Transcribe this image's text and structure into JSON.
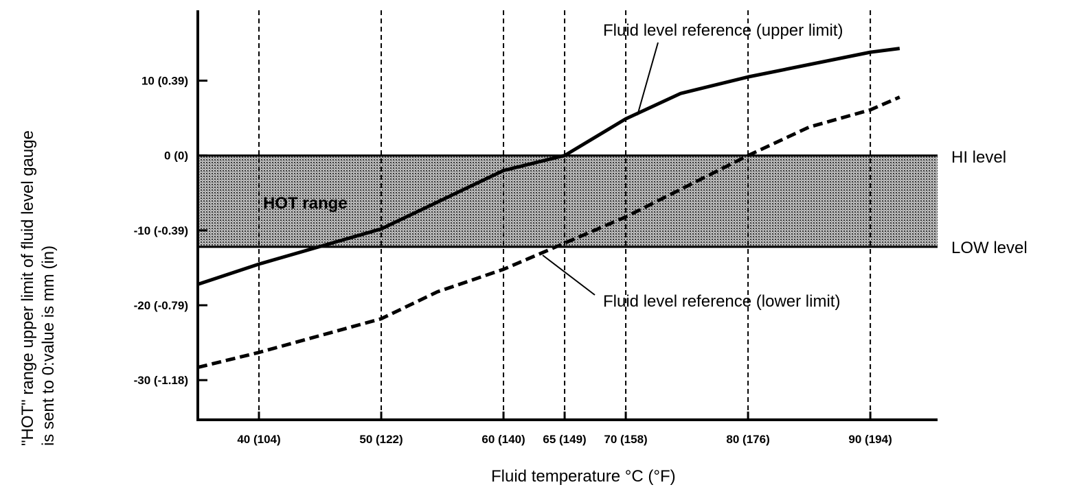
{
  "chart_data": {
    "type": "line",
    "title": "",
    "xlabel": "Fluid temperature °C (°F)",
    "ylabel_lines": [
      "\"HOT\" range upper limit of fluid level gauge",
      "is sent to 0:value is mm (in)"
    ],
    "xlim": [
      35,
      95.5
    ],
    "ylim": [
      -35.3,
      19.4
    ],
    "grid": "vertical dashed lines at x ticks",
    "x_ticks": [
      {
        "value": 40,
        "label": "40 (104)"
      },
      {
        "value": 50,
        "label": "50 (122)"
      },
      {
        "value": 60,
        "label": "60 (140)"
      },
      {
        "value": 65,
        "label": "65 (149)"
      },
      {
        "value": 70,
        "label": "70 (158)"
      },
      {
        "value": 80,
        "label": "80 (176)"
      },
      {
        "value": 90,
        "label": "90 (194)"
      }
    ],
    "y_ticks": [
      {
        "value": 10,
        "label": "10 (0.39)"
      },
      {
        "value": 0,
        "label": "0 (0)"
      },
      {
        "value": -10,
        "label": "-10 (-0.39)"
      },
      {
        "value": -20,
        "label": "-20 (-0.79)"
      },
      {
        "value": -30,
        "label": "-30 (-1.18)"
      }
    ],
    "band": {
      "label": "HOT range",
      "from": -12.2,
      "to": 0
    },
    "reference_lines": [
      {
        "label": "HI level",
        "y": 0
      },
      {
        "label": "LOW level",
        "y": -12.2
      }
    ],
    "series": [
      {
        "name": "Fluid level reference (upper limit)",
        "style": "solid",
        "x": [
          35,
          40,
          50,
          60,
          65,
          70,
          74.5,
          80,
          90,
          92.4
        ],
        "y": [
          -17.2,
          -14.5,
          -9.8,
          -2.0,
          0,
          4.9,
          8.3,
          10.5,
          13.8,
          14.3
        ]
      },
      {
        "name": "Fluid level reference (lower limit)",
        "style": "dashed",
        "x": [
          35,
          40,
          50,
          54.6,
          60,
          65,
          70,
          80,
          85,
          90,
          92.4
        ],
        "y": [
          -28.3,
          -26.3,
          -21.8,
          -18.2,
          -15.2,
          -11.7,
          -8.2,
          0,
          3.8,
          6.1,
          7.8
        ]
      }
    ]
  }
}
